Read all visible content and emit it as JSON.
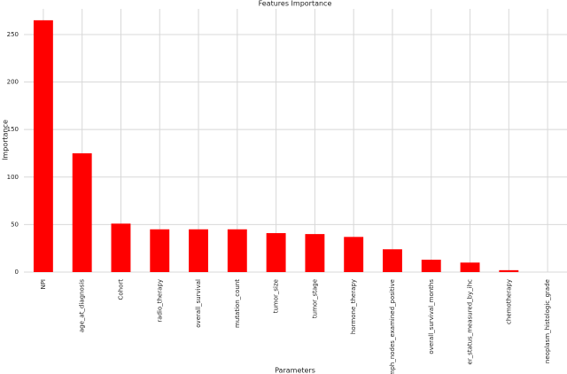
{
  "chart_data": {
    "type": "bar",
    "title": "Features Importance",
    "xlabel": "Parameters",
    "ylabel": "Importance",
    "categories": [
      "NPI",
      "age_at_diagnosis",
      "Cohort",
      "radio_therapy",
      "overall_survival",
      "mutation_count",
      "tumor_size",
      "tumor_stage",
      "hormone_therapy",
      "lymph_nodes_examined_positive",
      "overall_survival_months",
      "er_status_measured_by_ihc",
      "chemotherapy",
      "neoplasm_histologic_grade"
    ],
    "values": [
      265,
      125,
      51,
      45,
      45,
      45,
      41,
      40,
      37,
      24,
      13,
      10,
      2,
      0
    ],
    "color": "#ff0000",
    "ylim": [
      0,
      277
    ],
    "yticks": [
      0,
      50,
      100,
      150,
      200,
      250
    ],
    "grid": true
  }
}
